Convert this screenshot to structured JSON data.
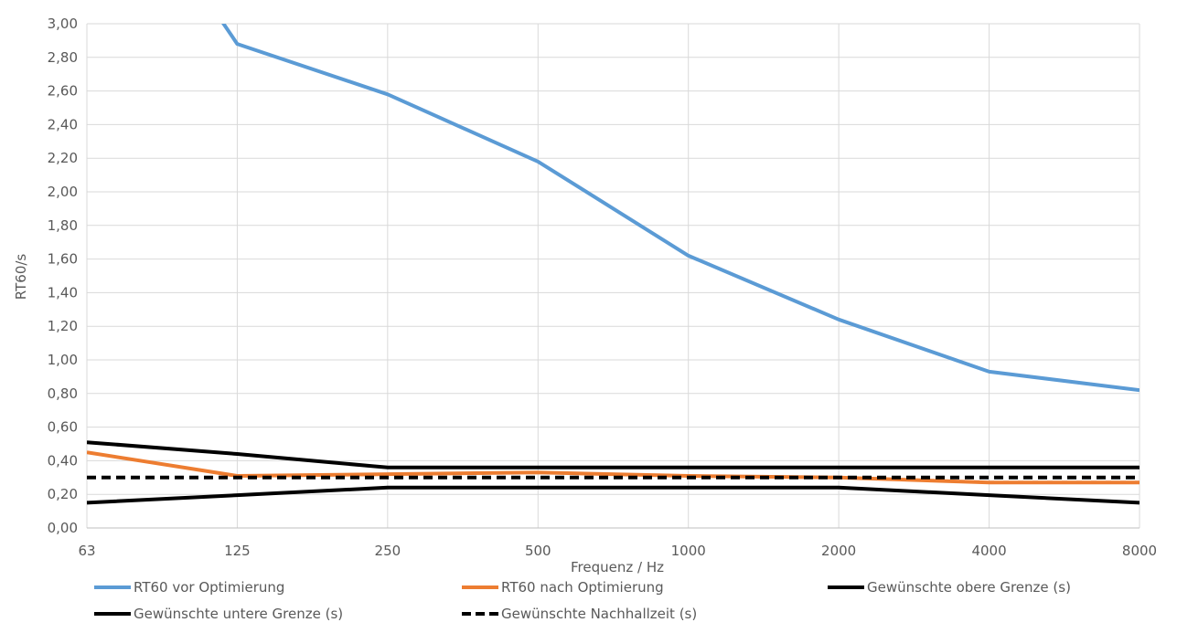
{
  "chart_data": {
    "type": "line",
    "xlabel": "Frequenz / Hz",
    "ylabel": "RT60/s",
    "categories": [
      "63",
      "125",
      "250",
      "500",
      "1000",
      "2000",
      "4000",
      "8000"
    ],
    "ylim": [
      0,
      3.0
    ],
    "ytick_step": 0.2,
    "y_tick_labels": [
      "0,00",
      "0,20",
      "0,40",
      "0,60",
      "0,80",
      "1,00",
      "1,20",
      "1,40",
      "1,60",
      "1,80",
      "2,00",
      "2,20",
      "2,40",
      "2,60",
      "2,80",
      "3,00"
    ],
    "grid": true,
    "legend_position": "bottom",
    "series": [
      {
        "name": "RT60 vor Optimierung",
        "values": [
          4.2,
          2.88,
          2.58,
          2.18,
          1.62,
          1.24,
          0.93,
          0.82
        ],
        "color": "#5b9bd5",
        "dash": "solid"
      },
      {
        "name": "RT60 nach Optimierung",
        "values": [
          0.45,
          0.31,
          0.32,
          0.33,
          0.31,
          0.3,
          0.27,
          0.27
        ],
        "color": "#ed7d31",
        "dash": "solid"
      },
      {
        "name": "Gewünschte obere Grenze (s)",
        "values": [
          0.51,
          0.44,
          0.36,
          0.36,
          0.36,
          0.36,
          0.36,
          0.36
        ],
        "color": "#000000",
        "dash": "solid"
      },
      {
        "name": "Gewünschte untere Grenze (s)",
        "values": [
          0.15,
          0.195,
          0.24,
          0.24,
          0.24,
          0.24,
          0.195,
          0.15
        ],
        "color": "#000000",
        "dash": "solid"
      },
      {
        "name": "Gewünschte Nachhallzeit (s)",
        "values": [
          0.3,
          0.3,
          0.3,
          0.3,
          0.3,
          0.3,
          0.3,
          0.3
        ],
        "color": "#000000",
        "dash": "dashed"
      }
    ]
  }
}
